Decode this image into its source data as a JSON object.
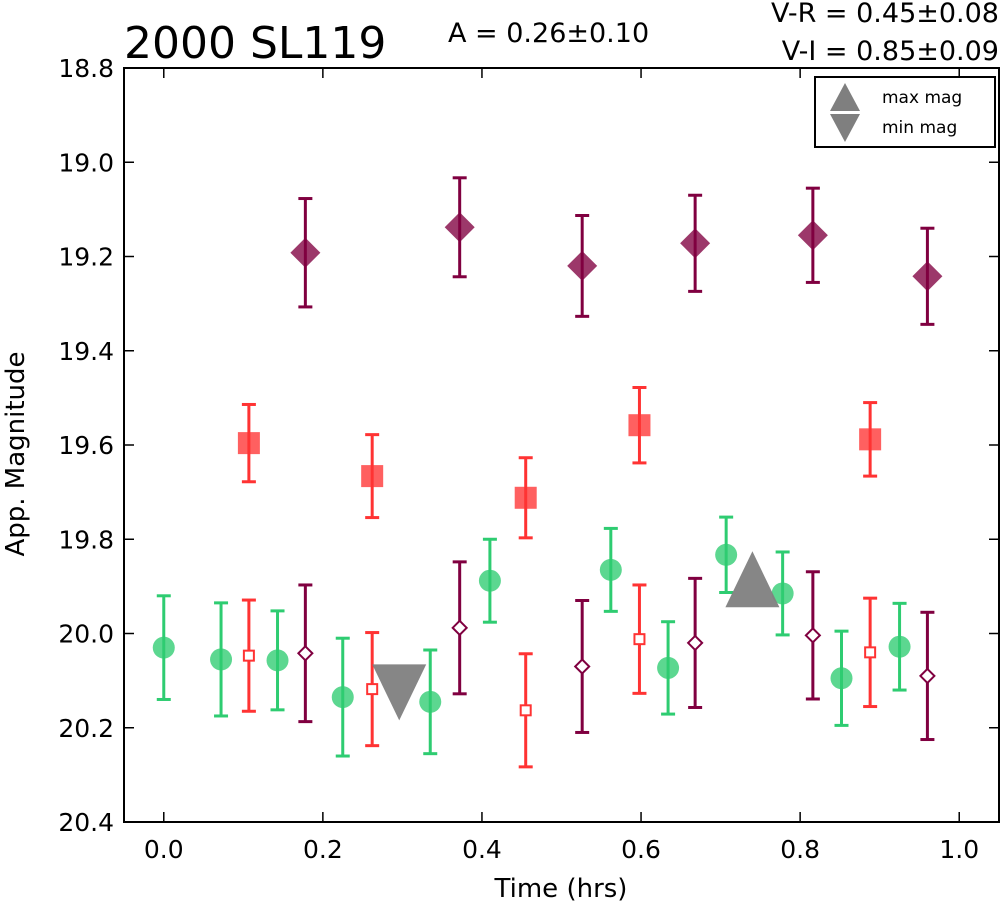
{
  "chart_data": {
    "type": "scatter",
    "title": "2000 SL119",
    "amplitude_text": "A  = 0.26±0.10",
    "color_lines": [
      "V-R = 0.45±0.08",
      "V-I  = 0.85±0.09"
    ],
    "xlabel": "Time (hrs)",
    "ylabel": "App. Magnitude",
    "xlim": [
      -0.05,
      1.05
    ],
    "ylim": [
      20.4,
      18.8
    ],
    "y_inverted": true,
    "x_ticks": [
      "0.0",
      "0.2",
      "0.4",
      "0.6",
      "0.8",
      "1.0"
    ],
    "y_ticks": [
      "18.8",
      "19.0",
      "19.2",
      "19.4",
      "19.6",
      "19.8",
      "20.0",
      "20.2",
      "20.4"
    ],
    "legend_position": "top-right",
    "legend": [
      {
        "label": "max mag",
        "marker": "triangle-up",
        "color": "#7f7f7f"
      },
      {
        "label": "min mag",
        "marker": "triangle-down",
        "color": "#7f7f7f"
      }
    ],
    "series": [
      {
        "marker": "circle",
        "color": "#2ecc71",
        "filled": true,
        "points": [
          {
            "x": 0.0,
            "y": 20.03,
            "err": 0.11
          },
          {
            "x": 0.072,
            "y": 20.055,
            "err": 0.12
          },
          {
            "x": 0.143,
            "y": 20.057,
            "err": 0.105
          },
          {
            "x": 0.225,
            "y": 20.135,
            "err": 0.125
          },
          {
            "x": 0.335,
            "y": 20.145,
            "err": 0.11
          },
          {
            "x": 0.41,
            "y": 19.888,
            "err": 0.088
          },
          {
            "x": 0.562,
            "y": 19.865,
            "err": 0.088
          },
          {
            "x": 0.634,
            "y": 20.073,
            "err": 0.098
          },
          {
            "x": 0.707,
            "y": 19.833,
            "err": 0.08
          },
          {
            "x": 0.778,
            "y": 19.915,
            "err": 0.088
          },
          {
            "x": 0.852,
            "y": 20.095,
            "err": 0.1
          },
          {
            "x": 0.925,
            "y": 20.028,
            "err": 0.092
          }
        ]
      },
      {
        "marker": "square",
        "color": "#ff3333",
        "filled": true,
        "points": [
          {
            "x": 0.107,
            "y": 19.596,
            "err": 0.082
          },
          {
            "x": 0.262,
            "y": 19.666,
            "err": 0.088
          },
          {
            "x": 0.455,
            "y": 19.712,
            "err": 0.085
          },
          {
            "x": 0.598,
            "y": 19.558,
            "err": 0.08
          },
          {
            "x": 0.888,
            "y": 19.588,
            "err": 0.078
          }
        ]
      },
      {
        "marker": "square",
        "color": "#ff3333",
        "filled": false,
        "points": [
          {
            "x": 0.107,
            "y": 20.047,
            "err": 0.118
          },
          {
            "x": 0.262,
            "y": 20.118,
            "err": 0.12
          },
          {
            "x": 0.455,
            "y": 20.163,
            "err": 0.12
          },
          {
            "x": 0.598,
            "y": 20.012,
            "err": 0.115
          },
          {
            "x": 0.888,
            "y": 20.04,
            "err": 0.115
          }
        ]
      },
      {
        "marker": "diamond",
        "color": "#800040",
        "filled": true,
        "points": [
          {
            "x": 0.178,
            "y": 19.192,
            "err": 0.115
          },
          {
            "x": 0.372,
            "y": 19.138,
            "err": 0.105
          },
          {
            "x": 0.526,
            "y": 19.22,
            "err": 0.107
          },
          {
            "x": 0.668,
            "y": 19.172,
            "err": 0.102
          },
          {
            "x": 0.816,
            "y": 19.155,
            "err": 0.1
          },
          {
            "x": 0.96,
            "y": 19.242,
            "err": 0.102
          }
        ]
      },
      {
        "marker": "diamond",
        "color": "#800040",
        "filled": false,
        "points": [
          {
            "x": 0.178,
            "y": 20.042,
            "err": 0.145
          },
          {
            "x": 0.372,
            "y": 19.988,
            "err": 0.14
          },
          {
            "x": 0.526,
            "y": 20.07,
            "err": 0.14
          },
          {
            "x": 0.668,
            "y": 20.02,
            "err": 0.137
          },
          {
            "x": 0.816,
            "y": 20.004,
            "err": 0.135
          },
          {
            "x": 0.96,
            "y": 20.09,
            "err": 0.135
          }
        ]
      }
    ],
    "extrema_markers": [
      {
        "label": "min mag",
        "marker": "triangle-down",
        "x": 0.296,
        "y": 20.125,
        "color": "#7f7f7f"
      },
      {
        "label": "max mag",
        "marker": "triangle-up",
        "x": 0.74,
        "y": 19.885,
        "color": "#7f7f7f"
      }
    ]
  }
}
